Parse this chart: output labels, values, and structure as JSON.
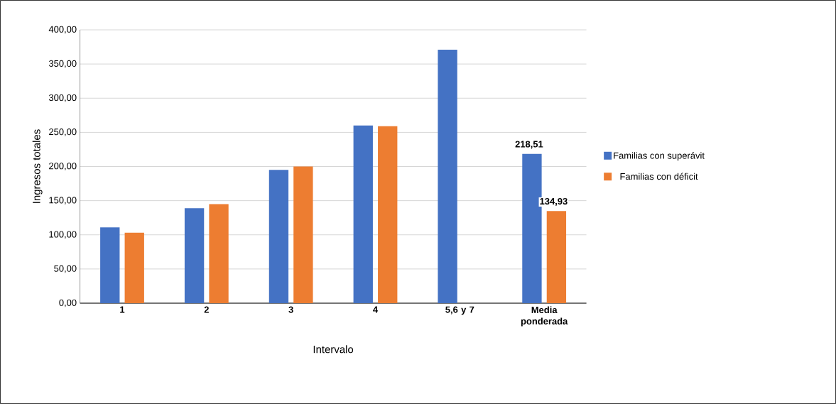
{
  "chart_data": {
    "type": "bar",
    "xlabel": "Intervalo",
    "ylabel": "Ingresos totales",
    "categories": [
      "1",
      "2",
      "3",
      "4",
      "5,6 y 7",
      "Media ponderada"
    ],
    "series": [
      {
        "name": "Familias con superávit",
        "color": "#4472c4",
        "values": [
          111,
          139,
          195,
          260,
          371,
          218.51
        ],
        "value_labels": [
          null,
          null,
          null,
          null,
          null,
          "218,51"
        ]
      },
      {
        "name": "Familias con déficit",
        "color": "#ed7d31",
        "values": [
          103,
          145,
          200,
          259,
          null,
          134.93
        ],
        "value_labels": [
          null,
          null,
          null,
          null,
          null,
          "134,93"
        ]
      }
    ],
    "ylim": [
      0,
      400
    ],
    "yticks": [
      {
        "value": 0,
        "label": "0,00"
      },
      {
        "value": 50,
        "label": "50,00"
      },
      {
        "value": 100,
        "label": "100,00"
      },
      {
        "value": 150,
        "label": "150,00"
      },
      {
        "value": 200,
        "label": "200,00"
      },
      {
        "value": 250,
        "label": "250,00"
      },
      {
        "value": 300,
        "label": "300,00"
      },
      {
        "value": 350,
        "label": "350,00"
      },
      {
        "value": 400,
        "label": "400,00"
      }
    ],
    "grid": "y",
    "legend": "right"
  }
}
